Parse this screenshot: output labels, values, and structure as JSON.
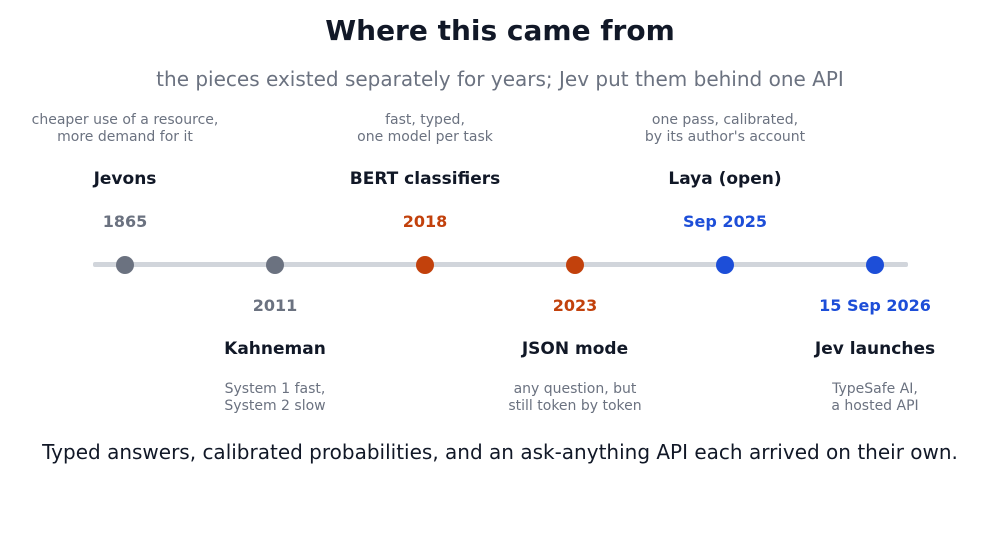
{
  "title": "Where this came from",
  "subtitle": "the pieces existed separately for years; Jev put them behind one API",
  "colors": {
    "gray": "#6b7280",
    "orange": "#c2410c",
    "blue": "#1d4ed8",
    "axis": "#d1d5db"
  },
  "events": [
    {
      "date": "1865",
      "name": "Jevons",
      "desc": [
        "cheaper use of a resource,",
        "more demand for it"
      ],
      "position": "above",
      "color": "#6b7280"
    },
    {
      "date": "2011",
      "name": "Kahneman",
      "desc": [
        "System 1 fast,",
        "System 2 slow"
      ],
      "position": "below",
      "color": "#6b7280"
    },
    {
      "date": "2018",
      "name": "BERT classifiers",
      "desc": [
        "fast, typed,",
        "one model per task"
      ],
      "position": "above",
      "color": "#c2410c"
    },
    {
      "date": "2023",
      "name": "JSON mode",
      "desc": [
        "any question, but",
        "still token by token"
      ],
      "position": "below",
      "color": "#c2410c"
    },
    {
      "date": "Sep 2025",
      "name": "Laya (open)",
      "desc": [
        "one pass, calibrated,",
        "by its author's account"
      ],
      "position": "above",
      "color": "#1d4ed8"
    },
    {
      "date": "15 Sep 2026",
      "name": "Jev launches",
      "desc": [
        "TypeSafe AI,",
        "a hosted API"
      ],
      "position": "below",
      "color": "#1d4ed8"
    }
  ],
  "footer": "Typed answers, calibrated probabilities, and an ask-anything API each arrived on their own."
}
